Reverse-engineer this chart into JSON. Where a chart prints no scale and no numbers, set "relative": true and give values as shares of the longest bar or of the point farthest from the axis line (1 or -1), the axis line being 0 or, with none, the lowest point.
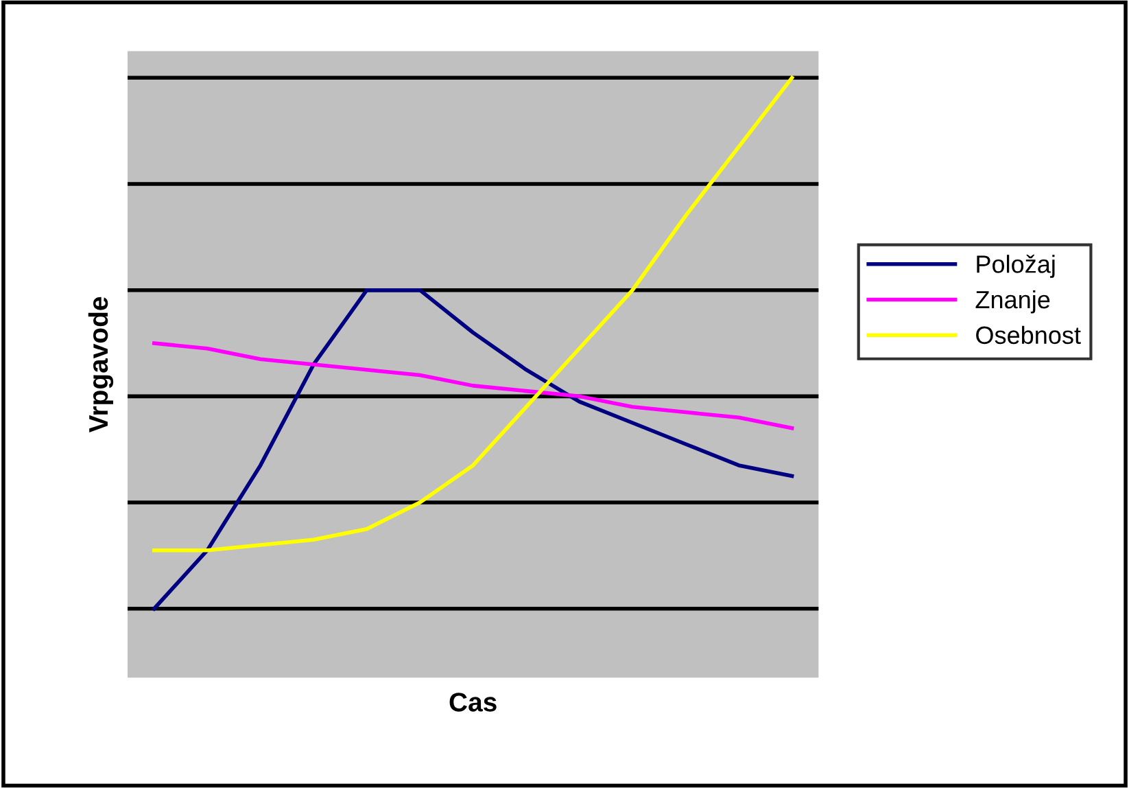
{
  "chart_data": {
    "type": "line",
    "relative": true,
    "xlabel": "Cas",
    "ylabel": "Vrpgavode",
    "categories": [
      null,
      null,
      null,
      null,
      null,
      null,
      null,
      null,
      null,
      null,
      null,
      null,
      null
    ],
    "series": [
      {
        "name": "Položaj",
        "color": "#000080",
        "values": [
          0,
          0.11,
          0.27,
          0.46,
          0.6,
          0.6,
          0.52,
          0.45,
          0.39,
          0.35,
          0.31,
          0.27,
          0.25
        ]
      },
      {
        "name": "Znanje",
        "color": "#ff00ff",
        "values": [
          0.5,
          0.49,
          0.47,
          0.46,
          0.45,
          0.44,
          0.42,
          0.41,
          0.4,
          0.38,
          0.37,
          0.36,
          0.34
        ]
      },
      {
        "name": "Osebnost",
        "color": "#ffff00",
        "values": [
          0.11,
          0.11,
          0.12,
          0.13,
          0.15,
          0.2,
          0.27,
          0.38,
          0.49,
          0.6,
          0.74,
          0.87,
          1.0
        ]
      }
    ],
    "grid": "y",
    "legend": "right"
  }
}
